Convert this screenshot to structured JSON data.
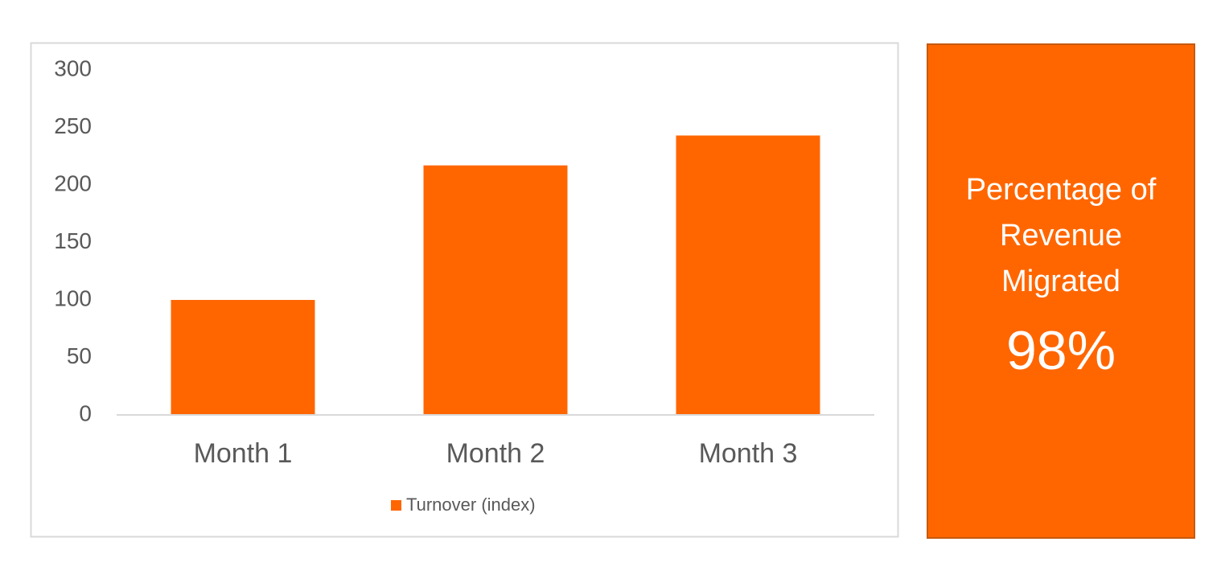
{
  "chart_data": {
    "type": "bar",
    "categories": [
      "Month 1",
      "Month 2",
      "Month 3"
    ],
    "series": [
      {
        "name": "Turnover (index)",
        "color": "#ff6600",
        "values": [
          100,
          217,
          243
        ]
      }
    ],
    "ylim": [
      0,
      300
    ],
    "yticks": [
      0,
      50,
      100,
      150,
      200,
      250,
      300
    ],
    "grid": false,
    "legend": "bottom"
  },
  "card": {
    "label": "Percentage of Revenue Migrated",
    "value": "98%"
  }
}
